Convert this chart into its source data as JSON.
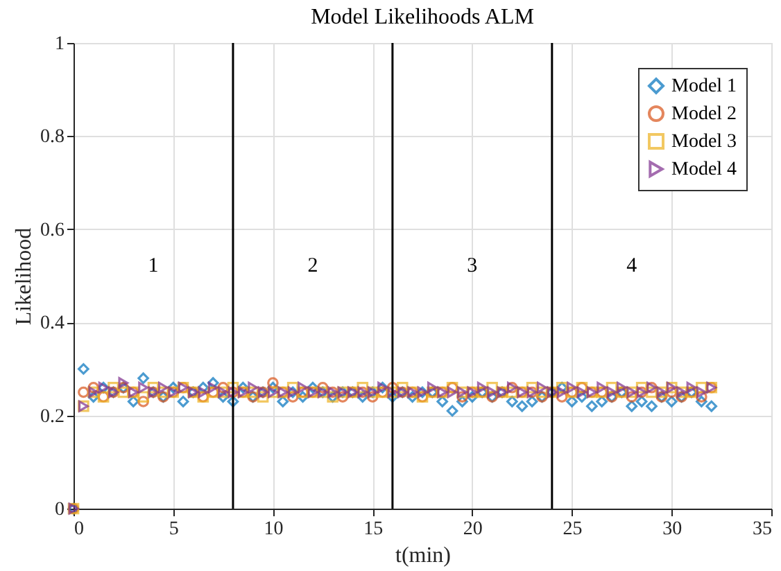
{
  "chart_data": {
    "type": "scatter",
    "title": "Model Likelihoods ALM",
    "xlabel": "t(min)",
    "ylabel": "Likelihood",
    "x": [
      0,
      0.5,
      1,
      1.5,
      2,
      2.5,
      3,
      3.5,
      4,
      4.5,
      5,
      5.5,
      6,
      6.5,
      7,
      7.5,
      8,
      8.5,
      9,
      9.5,
      10,
      10.5,
      11,
      11.5,
      12,
      12.5,
      13,
      13.5,
      14,
      14.5,
      15,
      15.5,
      16,
      16.5,
      17,
      17.5,
      18,
      18.5,
      19,
      19.5,
      20,
      20.5,
      21,
      21.5,
      22,
      22.5,
      23,
      23.5,
      24,
      24.5,
      25,
      25.5,
      26,
      26.5,
      27,
      27.5,
      28,
      28.5,
      29,
      29.5,
      30,
      30.5,
      31,
      31.5,
      32
    ],
    "series": [
      {
        "name": "Model 1",
        "color": "#0072bd",
        "marker": "diamond",
        "values": [
          0,
          0.3,
          0.24,
          0.26,
          0.25,
          0.26,
          0.23,
          0.28,
          0.25,
          0.24,
          0.26,
          0.23,
          0.25,
          0.26,
          0.27,
          0.24,
          0.23,
          0.26,
          0.24,
          0.25,
          0.26,
          0.23,
          0.25,
          0.24,
          0.26,
          0.25,
          0.24,
          0.25,
          0.25,
          0.24,
          0.25,
          0.26,
          0.24,
          0.25,
          0.24,
          0.25,
          0.25,
          0.23,
          0.21,
          0.23,
          0.24,
          0.25,
          0.24,
          0.25,
          0.23,
          0.22,
          0.23,
          0.24,
          0.25,
          0.26,
          0.23,
          0.24,
          0.22,
          0.23,
          0.24,
          0.25,
          0.22,
          0.23,
          0.22,
          0.24,
          0.23,
          0.24,
          0.25,
          0.23,
          0.22
        ]
      },
      {
        "name": "Model 2",
        "color": "#d95319",
        "marker": "circle",
        "values": [
          0,
          0.25,
          0.26,
          0.24,
          0.25,
          0.26,
          0.25,
          0.23,
          0.25,
          0.24,
          0.25,
          0.26,
          0.25,
          0.24,
          0.25,
          0.26,
          0.25,
          0.25,
          0.24,
          0.25,
          0.27,
          0.25,
          0.24,
          0.25,
          0.25,
          0.26,
          0.25,
          0.24,
          0.25,
          0.25,
          0.24,
          0.25,
          0.26,
          0.25,
          0.25,
          0.24,
          0.25,
          0.25,
          0.26,
          0.24,
          0.25,
          0.25,
          0.24,
          0.25,
          0.26,
          0.25,
          0.25,
          0.24,
          0.25,
          0.24,
          0.25,
          0.26,
          0.25,
          0.25,
          0.24,
          0.25,
          0.24,
          0.25,
          0.26,
          0.24,
          0.25,
          0.24,
          0.25,
          0.24,
          0.26
        ]
      },
      {
        "name": "Model 3",
        "color": "#edb120",
        "marker": "square",
        "values": [
          0,
          0.22,
          0.25,
          0.24,
          0.26,
          0.25,
          0.25,
          0.24,
          0.26,
          0.25,
          0.25,
          0.26,
          0.25,
          0.24,
          0.25,
          0.25,
          0.26,
          0.25,
          0.25,
          0.24,
          0.25,
          0.25,
          0.26,
          0.25,
          0.25,
          0.25,
          0.24,
          0.25,
          0.25,
          0.26,
          0.25,
          0.25,
          0.25,
          0.26,
          0.25,
          0.24,
          0.25,
          0.25,
          0.26,
          0.25,
          0.25,
          0.25,
          0.26,
          0.25,
          0.25,
          0.25,
          0.26,
          0.25,
          0.25,
          0.26,
          0.25,
          0.26,
          0.25,
          0.25,
          0.26,
          0.25,
          0.25,
          0.26,
          0.25,
          0.25,
          0.26,
          0.25,
          0.25,
          0.26,
          0.26
        ]
      },
      {
        "name": "Model 4",
        "color": "#7e2f8e",
        "marker": "triangle",
        "values": [
          0,
          0.22,
          0.25,
          0.26,
          0.25,
          0.27,
          0.25,
          0.26,
          0.25,
          0.26,
          0.25,
          0.26,
          0.25,
          0.25,
          0.26,
          0.25,
          0.25,
          0.25,
          0.26,
          0.25,
          0.25,
          0.25,
          0.25,
          0.26,
          0.25,
          0.25,
          0.25,
          0.25,
          0.25,
          0.25,
          0.25,
          0.26,
          0.25,
          0.25,
          0.25,
          0.25,
          0.26,
          0.25,
          0.25,
          0.25,
          0.25,
          0.26,
          0.25,
          0.25,
          0.26,
          0.25,
          0.25,
          0.26,
          0.25,
          0.25,
          0.26,
          0.25,
          0.25,
          0.26,
          0.25,
          0.26,
          0.25,
          0.25,
          0.26,
          0.25,
          0.26,
          0.25,
          0.26,
          0.25,
          0.26
        ]
      }
    ],
    "xlim": [
      0,
      35
    ],
    "xticks": [
      0,
      5,
      10,
      15,
      20,
      25,
      30,
      35
    ],
    "ylim": [
      0,
      1
    ],
    "yticks": [
      0,
      0.2,
      0.4,
      0.6,
      0.8,
      1
    ],
    "ref_lines": [
      {
        "axis": "x",
        "value": 8,
        "color": "#000000"
      },
      {
        "axis": "x",
        "value": 16,
        "color": "#000000"
      },
      {
        "axis": "x",
        "value": 24,
        "color": "#000000"
      }
    ],
    "annotations": [
      "1",
      "2",
      "3",
      "4"
    ],
    "grid": true,
    "legend": "top right"
  }
}
